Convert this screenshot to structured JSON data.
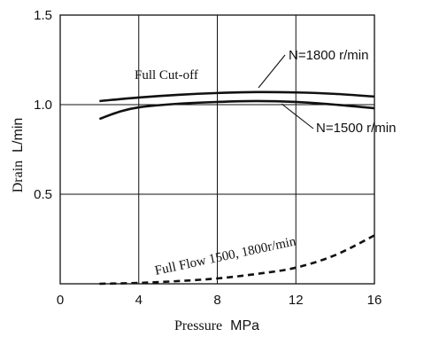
{
  "chart_data": {
    "type": "line",
    "xlabel_word": "Pressure",
    "xlabel_unit": "MPa",
    "ylabel_word": "Drain",
    "ylabel_unit": "L/min",
    "xlim": [
      0,
      16
    ],
    "ylim": [
      0,
      1.5
    ],
    "x_ticks": [
      "0",
      "4",
      "8",
      "12",
      "16"
    ],
    "y_ticks": [
      "0.5",
      "1.0",
      "1.5"
    ],
    "grid": "major",
    "annotations": {
      "cutoff": "Full Cut-off",
      "n1800": "N=1800 r/min",
      "n1500": "N=1500 r/min",
      "fullflow": "Full Flow 1500, 1800r/min"
    },
    "series": [
      {
        "key": "n1800",
        "style": "solid",
        "color": "#111111",
        "points": [
          [
            2,
            1.02
          ],
          [
            4,
            1.04
          ],
          [
            6,
            1.055
          ],
          [
            8,
            1.065
          ],
          [
            10,
            1.07
          ],
          [
            12,
            1.068
          ],
          [
            14,
            1.06
          ],
          [
            16,
            1.045
          ]
        ]
      },
      {
        "key": "n1500",
        "style": "solid",
        "color": "#111111",
        "points": [
          [
            2,
            0.92
          ],
          [
            3,
            0.96
          ],
          [
            4,
            0.985
          ],
          [
            6,
            1.005
          ],
          [
            8,
            1.015
          ],
          [
            10,
            1.02
          ],
          [
            12,
            1.015
          ],
          [
            14,
            1.0
          ],
          [
            16,
            0.98
          ]
        ]
      },
      {
        "key": "fullflow",
        "style": "dashed",
        "color": "#111111",
        "points": [
          [
            2,
            0.0
          ],
          [
            4,
            0.005
          ],
          [
            6,
            0.015
          ],
          [
            8,
            0.03
          ],
          [
            10,
            0.055
          ],
          [
            12,
            0.09
          ],
          [
            14,
            0.16
          ],
          [
            16,
            0.27
          ]
        ]
      }
    ]
  }
}
